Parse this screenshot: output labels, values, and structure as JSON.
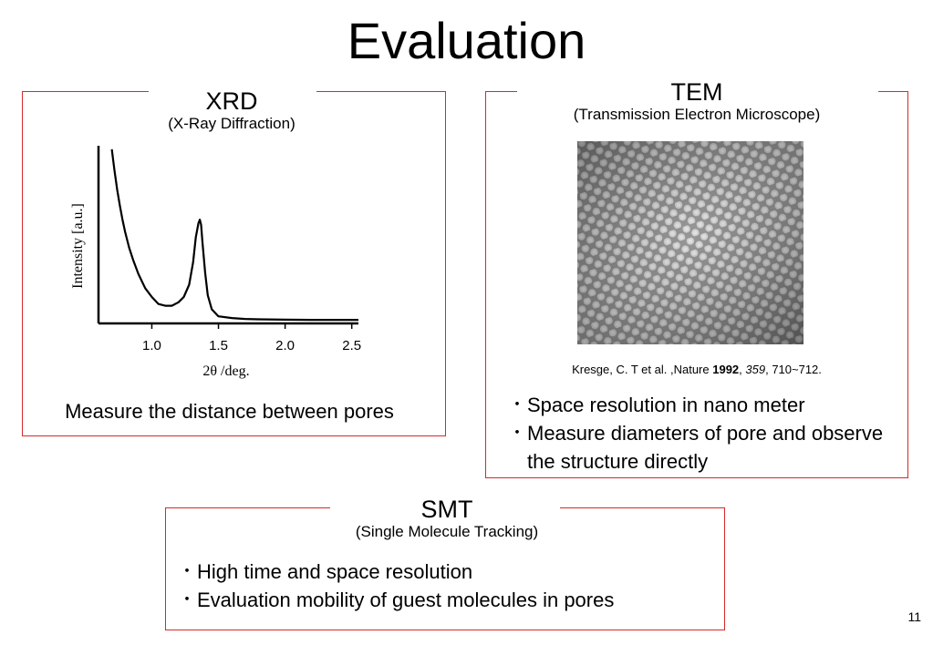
{
  "slide": {
    "title": "Evaluation",
    "page_number": "11"
  },
  "xrd": {
    "title": "XRD",
    "subtitle": "(X-Ray Diffraction)",
    "caption": "Measure the distance between pores",
    "chart": {
      "ylabel": "Intensity [a.u.]",
      "xlabel": "2θ /deg.",
      "ticks": [
        "1.0",
        "1.5",
        "2.0",
        "2.5"
      ]
    }
  },
  "tem": {
    "title": "TEM",
    "subtitle": "(Transmission Electron Microscope)",
    "image_name": "tem-micrograph-hexagonal-pores",
    "citation": {
      "prefix": "Kresge, C. T et al. ,Nature ",
      "year": "1992",
      "sep1": ", ",
      "volume": "359",
      "pages": ", 710~712."
    },
    "bullets": [
      "Space resolution in nano meter",
      "Measure diameters of pore and observe the structure directly"
    ]
  },
  "smt": {
    "title": "SMT",
    "subtitle": "(Single Molecule Tracking)",
    "bullets": [
      "High time and space resolution",
      "Evaluation mobility of guest molecules in pores"
    ]
  },
  "colors": {
    "panel_border": "#d42a2a",
    "text": "#000000",
    "background": "#ffffff"
  },
  "chart_data": {
    "type": "line",
    "title": "",
    "xlabel": "2θ /deg.",
    "ylabel": "Intensity [a.u.]",
    "xlim": [
      0.6,
      2.55
    ],
    "ylim": [
      0,
      100
    ],
    "x_ticks": [
      1.0,
      1.5,
      2.0,
      2.5
    ],
    "grid": false,
    "y_tick_labels": false,
    "series": [
      {
        "x": [
          0.7,
          0.72,
          0.74,
          0.76,
          0.78,
          0.8,
          0.83,
          0.86,
          0.9,
          0.95,
          1.0,
          1.05,
          1.1,
          1.15,
          1.2,
          1.24,
          1.28,
          1.31,
          1.33,
          1.35,
          1.36,
          1.37,
          1.38,
          1.4,
          1.42,
          1.45,
          1.5,
          1.6,
          1.7,
          1.8,
          2.0,
          2.2,
          2.4,
          2.55
        ],
        "y": [
          98,
          86,
          75,
          66,
          58,
          51,
          42,
          35,
          27,
          19,
          14,
          10,
          9,
          9,
          11,
          14,
          21,
          34,
          48,
          56,
          58,
          55,
          45,
          28,
          15,
          7,
          3,
          2,
          1.5,
          1.3,
          1.1,
          1.0,
          1.0,
          1.0
        ]
      }
    ]
  }
}
